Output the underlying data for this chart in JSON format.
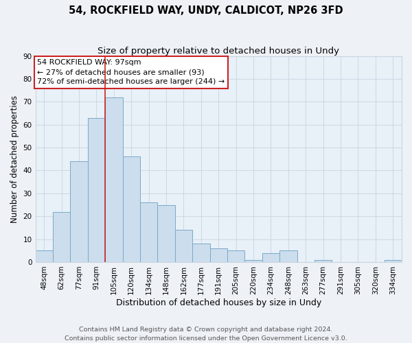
{
  "title": "54, ROCKFIELD WAY, UNDY, CALDICOT, NP26 3FD",
  "subtitle": "Size of property relative to detached houses in Undy",
  "xlabel": "Distribution of detached houses by size in Undy",
  "ylabel": "Number of detached properties",
  "bin_labels": [
    "48sqm",
    "62sqm",
    "77sqm",
    "91sqm",
    "105sqm",
    "120sqm",
    "134sqm",
    "148sqm",
    "162sqm",
    "177sqm",
    "191sqm",
    "205sqm",
    "220sqm",
    "234sqm",
    "248sqm",
    "263sqm",
    "277sqm",
    "291sqm",
    "305sqm",
    "320sqm",
    "334sqm"
  ],
  "bar_heights": [
    5,
    22,
    44,
    63,
    72,
    46,
    26,
    25,
    14,
    8,
    6,
    5,
    1,
    4,
    5,
    0,
    1,
    0,
    0,
    0,
    1
  ],
  "bar_color": "#ccdded",
  "bar_edge_color": "#7aaac8",
  "ylim": [
    0,
    90
  ],
  "yticks": [
    0,
    10,
    20,
    30,
    40,
    50,
    60,
    70,
    80,
    90
  ],
  "property_label": "54 ROCKFIELD WAY: 97sqm",
  "annotation_line1": "← 27% of detached houses are smaller (93)",
  "annotation_line2": "72% of semi-detached houses are larger (244) →",
  "vline_x": 3.5,
  "footer_line1": "Contains HM Land Registry data © Crown copyright and database right 2024.",
  "footer_line2": "Contains public sector information licensed under the Open Government Licence v3.0.",
  "background_color": "#eef2f7",
  "plot_background_color": "#e8f0f8",
  "grid_color": "#c8d4e0",
  "vline_color": "#cc2222",
  "annotation_box_color": "#ffffff",
  "annotation_box_edgecolor": "#cc2222",
  "title_fontsize": 10.5,
  "subtitle_fontsize": 9.5,
  "xlabel_fontsize": 9,
  "ylabel_fontsize": 8.5,
  "tick_fontsize": 7.5,
  "annotation_fontsize": 8,
  "footer_fontsize": 6.8
}
